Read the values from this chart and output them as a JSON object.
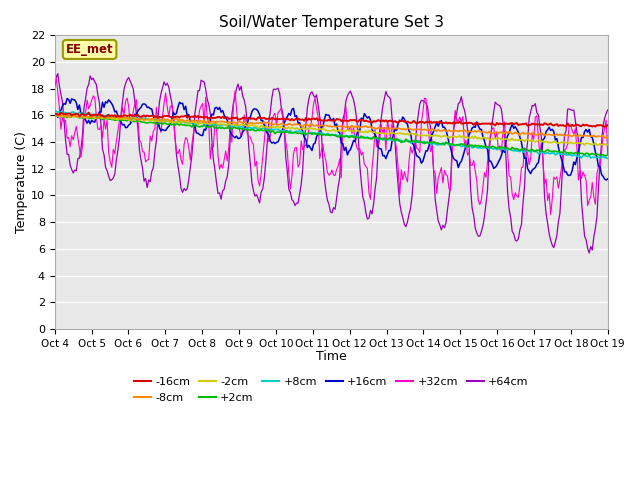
{
  "title": "Soil/Water Temperature Set 3",
  "xlabel": "Time",
  "ylabel": "Temperature (C)",
  "annotation": "EE_met",
  "ylim": [
    0,
    22
  ],
  "yticks": [
    0,
    2,
    4,
    6,
    8,
    10,
    12,
    14,
    16,
    18,
    20,
    22
  ],
  "x_labels": [
    "Oct 4",
    "Oct 5",
    "Oct 6",
    "Oct 7",
    "Oct 8",
    "Oct 9",
    "Oct 10",
    "Oct 11",
    "Oct 12",
    "Oct 13",
    "Oct 14",
    "Oct 15",
    "Oct 16",
    "Oct 17",
    "Oct 18",
    "Oct 19"
  ],
  "fig_width": 6.4,
  "fig_height": 4.8,
  "fig_dpi": 100,
  "bg_color": "#ffffff",
  "plot_bg_color": "#e8e8e8",
  "grid_color": "#ffffff",
  "series_colors": {
    "-16cm": "#dd0000",
    "-8cm": "#ff8800",
    "-2cm": "#cccc00",
    "+2cm": "#00bb00",
    "+8cm": "#00cccc",
    "+16cm": "#0000cc",
    "+32cm": "#ff00cc",
    "+64cm": "#9900bb"
  },
  "legend_row1": [
    "-16cm",
    "-8cm",
    "-2cm",
    "+2cm",
    "+8cm",
    "+16cm"
  ],
  "legend_row2": [
    "+32cm",
    "+64cm"
  ]
}
